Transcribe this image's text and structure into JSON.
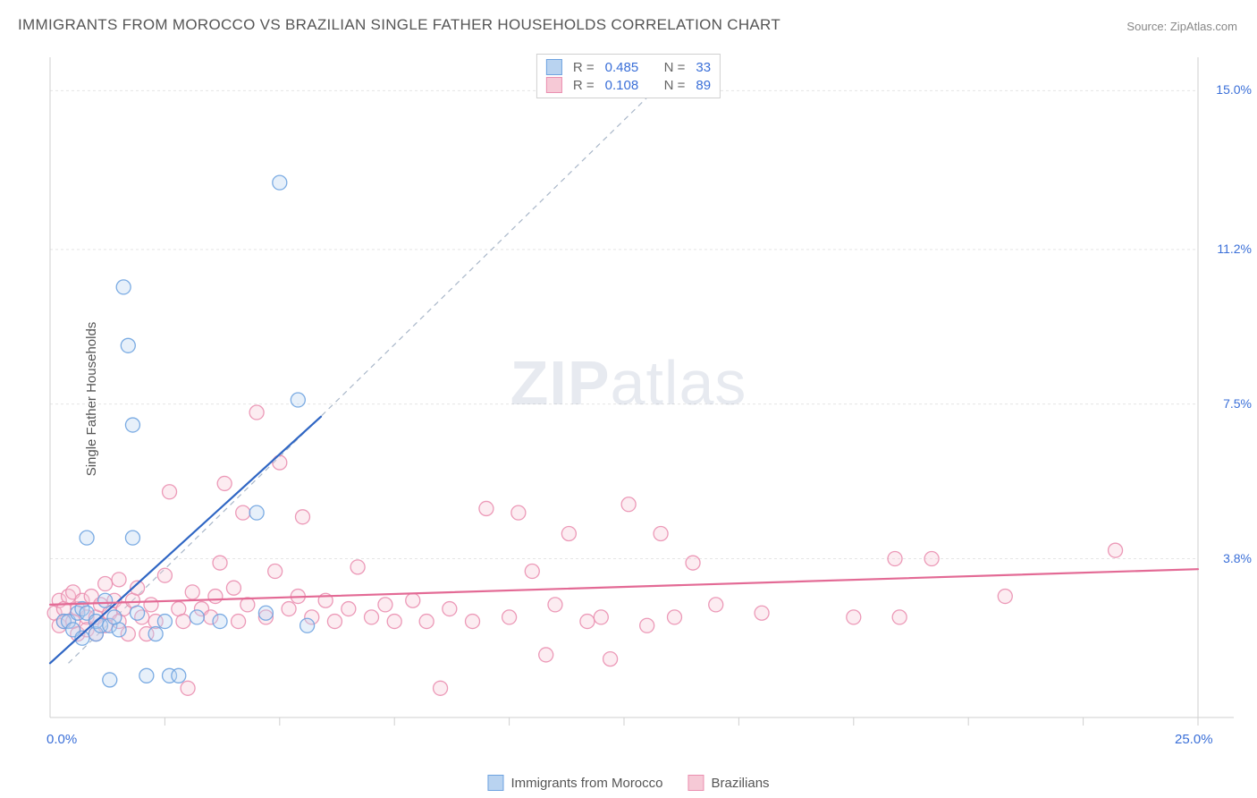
{
  "title": "IMMIGRANTS FROM MOROCCO VS BRAZILIAN SINGLE FATHER HOUSEHOLDS CORRELATION CHART",
  "source_label": "Source:",
  "source_value": "ZipAtlas.com",
  "ylabel": "Single Father Households",
  "watermark_a": "ZIP",
  "watermark_b": "atlas",
  "chart": {
    "type": "scatter",
    "xlim": [
      0,
      25
    ],
    "ylim": [
      0,
      15.8
    ],
    "x_origin_label": "0.0%",
    "x_max_label": "25.0%",
    "y_ticks": [
      {
        "v": 3.8,
        "label": "3.8%"
      },
      {
        "v": 7.5,
        "label": "7.5%"
      },
      {
        "v": 11.2,
        "label": "11.2%"
      },
      {
        "v": 15.0,
        "label": "15.0%"
      }
    ],
    "x_minor_ticks": [
      2.5,
      5,
      7.5,
      10,
      12.5,
      15,
      17.5,
      20,
      22.5,
      25
    ],
    "grid_color": "#e5e5e5",
    "axis_color": "#cfcfcf",
    "background": "#ffffff",
    "marker_radius": 8,
    "marker_fill_opacity": 0.35,
    "marker_stroke_opacity": 0.9,
    "marker_stroke_width": 1.3,
    "trend_line_width": 2.2,
    "dashed_line_color": "#a9b7c9",
    "dashed_line": {
      "x1": 0.4,
      "y1": 1.3,
      "x2": 13.9,
      "y2": 15.8
    },
    "series": [
      {
        "key": "morocco",
        "name": "Immigrants from Morocco",
        "color_fill": "#b9d3f0",
        "color_stroke": "#6ea3e0",
        "trend_color": "#2f66c4",
        "R": "0.485",
        "N": "33",
        "trend": {
          "x1": 0,
          "y1": 1.3,
          "x2": 5.9,
          "y2": 7.2
        },
        "points": [
          [
            0.3,
            2.3
          ],
          [
            0.4,
            2.3
          ],
          [
            0.5,
            2.1
          ],
          [
            0.6,
            2.5
          ],
          [
            0.7,
            1.9
          ],
          [
            0.7,
            2.6
          ],
          [
            0.8,
            2.5
          ],
          [
            0.8,
            4.3
          ],
          [
            1.0,
            2.0
          ],
          [
            1.0,
            2.3
          ],
          [
            1.1,
            2.2
          ],
          [
            1.2,
            2.8
          ],
          [
            1.3,
            0.9
          ],
          [
            1.3,
            2.2
          ],
          [
            1.5,
            2.1
          ],
          [
            1.6,
            10.3
          ],
          [
            1.7,
            8.9
          ],
          [
            1.8,
            7.0
          ],
          [
            1.9,
            2.5
          ],
          [
            2.1,
            1.0
          ],
          [
            2.5,
            2.3
          ],
          [
            2.6,
            1.0
          ],
          [
            2.8,
            1.0
          ],
          [
            3.2,
            2.4
          ],
          [
            3.7,
            2.3
          ],
          [
            4.5,
            4.9
          ],
          [
            4.7,
            2.5
          ],
          [
            5.0,
            12.8
          ],
          [
            5.4,
            7.6
          ],
          [
            5.6,
            2.2
          ],
          [
            2.3,
            2.0
          ],
          [
            1.8,
            4.3
          ],
          [
            1.4,
            2.4
          ]
        ]
      },
      {
        "key": "brazilians",
        "name": "Brazilians",
        "color_fill": "#f6c9d6",
        "color_stroke": "#ea8fb0",
        "trend_color": "#e36a95",
        "R": "0.108",
        "N": "89",
        "trend": {
          "x1": 0,
          "y1": 2.7,
          "x2": 25,
          "y2": 3.55
        },
        "points": [
          [
            0.1,
            2.5
          ],
          [
            0.2,
            2.2
          ],
          [
            0.2,
            2.8
          ],
          [
            0.3,
            2.6
          ],
          [
            0.3,
            2.3
          ],
          [
            0.4,
            2.9
          ],
          [
            0.5,
            2.3
          ],
          [
            0.5,
            3.0
          ],
          [
            0.6,
            2.0
          ],
          [
            0.6,
            2.6
          ],
          [
            0.7,
            2.8
          ],
          [
            0.8,
            2.4
          ],
          [
            0.8,
            2.1
          ],
          [
            0.9,
            2.9
          ],
          [
            1.0,
            2.4
          ],
          [
            1.0,
            2.0
          ],
          [
            1.1,
            2.7
          ],
          [
            1.2,
            3.2
          ],
          [
            1.2,
            2.2
          ],
          [
            1.3,
            2.5
          ],
          [
            1.4,
            2.8
          ],
          [
            1.5,
            2.3
          ],
          [
            1.5,
            3.3
          ],
          [
            1.6,
            2.6
          ],
          [
            1.7,
            2.0
          ],
          [
            1.8,
            2.8
          ],
          [
            1.9,
            3.1
          ],
          [
            2.0,
            2.4
          ],
          [
            2.1,
            2.0
          ],
          [
            2.2,
            2.7
          ],
          [
            2.3,
            2.3
          ],
          [
            2.5,
            3.4
          ],
          [
            2.6,
            5.4
          ],
          [
            2.8,
            2.6
          ],
          [
            2.9,
            2.3
          ],
          [
            3.0,
            0.7
          ],
          [
            3.1,
            3.0
          ],
          [
            3.3,
            2.6
          ],
          [
            3.5,
            2.4
          ],
          [
            3.6,
            2.9
          ],
          [
            3.8,
            5.6
          ],
          [
            4.0,
            3.1
          ],
          [
            4.1,
            2.3
          ],
          [
            4.3,
            2.7
          ],
          [
            4.5,
            7.3
          ],
          [
            4.7,
            2.4
          ],
          [
            4.9,
            3.5
          ],
          [
            5.0,
            6.1
          ],
          [
            5.2,
            2.6
          ],
          [
            5.4,
            2.9
          ],
          [
            5.5,
            4.8
          ],
          [
            5.7,
            2.4
          ],
          [
            6.0,
            2.8
          ],
          [
            6.2,
            2.3
          ],
          [
            6.5,
            2.6
          ],
          [
            6.7,
            3.6
          ],
          [
            7.0,
            2.4
          ],
          [
            7.3,
            2.7
          ],
          [
            7.5,
            2.3
          ],
          [
            7.9,
            2.8
          ],
          [
            8.2,
            2.3
          ],
          [
            8.5,
            0.7
          ],
          [
            8.7,
            2.6
          ],
          [
            9.2,
            2.3
          ],
          [
            9.5,
            5.0
          ],
          [
            10.0,
            2.4
          ],
          [
            10.2,
            4.9
          ],
          [
            10.5,
            3.5
          ],
          [
            10.8,
            1.5
          ],
          [
            11.0,
            2.7
          ],
          [
            11.3,
            4.4
          ],
          [
            11.7,
            2.3
          ],
          [
            12.0,
            2.4
          ],
          [
            12.2,
            1.4
          ],
          [
            12.6,
            5.1
          ],
          [
            13.0,
            2.2
          ],
          [
            13.3,
            4.4
          ],
          [
            13.6,
            2.4
          ],
          [
            14.0,
            3.7
          ],
          [
            14.5,
            2.7
          ],
          [
            15.5,
            2.5
          ],
          [
            17.5,
            2.4
          ],
          [
            18.4,
            3.8
          ],
          [
            18.5,
            2.4
          ],
          [
            19.2,
            3.8
          ],
          [
            20.8,
            2.9
          ],
          [
            23.2,
            4.0
          ],
          [
            4.2,
            4.9
          ],
          [
            3.7,
            3.7
          ]
        ]
      }
    ]
  }
}
